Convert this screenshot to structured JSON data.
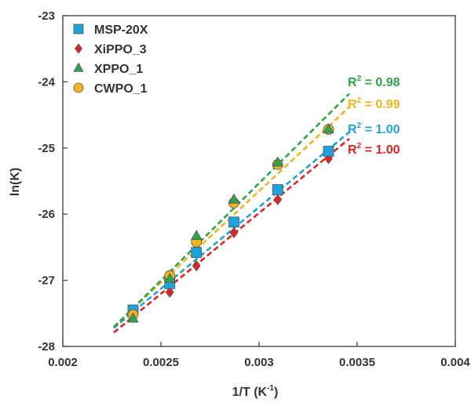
{
  "chart_data": {
    "type": "scatter",
    "xlabel": "1/T (K",
    "xlabel_sup": "-1",
    "xlabel_close": ")",
    "ylabel": "ln(K)",
    "xlim": [
      0.002,
      0.004
    ],
    "ylim": [
      -28,
      -23
    ],
    "x_ticks": [
      0.002,
      0.0025,
      0.003,
      0.0035,
      0.004
    ],
    "x_tick_labels": [
      "0.002",
      "0.0025",
      "0.003",
      "0.0035",
      "0.004"
    ],
    "y_ticks": [
      -28,
      -27,
      -26,
      -25,
      -24,
      -23
    ],
    "y_tick_labels": [
      "-28",
      "-27",
      "-26",
      "-25",
      "-24",
      "-23"
    ],
    "grid": false,
    "legend_position": "top-left",
    "series": [
      {
        "name": "MSP-20X",
        "marker": "square",
        "color": "#1ca3dc",
        "x": [
          0.002358,
          0.002545,
          0.002681,
          0.002872,
          0.003095,
          0.003354
        ],
        "y": [
          -27.45,
          -27.05,
          -26.58,
          -26.12,
          -25.63,
          -25.05
        ],
        "fit": {
          "x": [
            0.00226,
            0.00346
          ],
          "y": [
            -27.72,
            -24.76
          ]
        },
        "r2_prefix": "R",
        "r2_sup": "2",
        "r2_value": " = 1.00"
      },
      {
        "name": "XiPPO_3",
        "marker": "diamond",
        "color": "#e32322",
        "x": [
          0.002358,
          0.002545,
          0.002681,
          0.002872,
          0.003095,
          0.003354
        ],
        "y": [
          -27.55,
          -27.18,
          -26.78,
          -26.28,
          -25.78,
          -25.16
        ],
        "fit": {
          "x": [
            0.00226,
            0.00346
          ],
          "y": [
            -27.79,
            -24.86
          ]
        },
        "r2_prefix": "R",
        "r2_sup": "2",
        "r2_value": " = 1.00"
      },
      {
        "name": "XPPO_1",
        "marker": "triangle",
        "color": "#2da54a",
        "x": [
          0.002358,
          0.002545,
          0.002681,
          0.002872,
          0.003095,
          0.003354
        ],
        "y": [
          -27.58,
          -26.98,
          -26.33,
          -25.78,
          -25.22,
          -24.72
        ],
        "fit": {
          "x": [
            0.00226,
            0.00346
          ],
          "y": [
            -27.71,
            -24.18
          ]
        },
        "r2_prefix": "R",
        "r2_sup": "2",
        "r2_value": " = 0.98"
      },
      {
        "name": "CWPO_1",
        "marker": "circle",
        "color": "#f4b41a",
        "x": [
          0.002358,
          0.002545,
          0.002681,
          0.002872,
          0.003095,
          0.003354
        ],
        "y": [
          -27.52,
          -26.93,
          -26.42,
          -25.83,
          -25.25,
          -24.72
        ],
        "fit": {
          "x": [
            0.00226,
            0.00346
          ],
          "y": [
            -27.7,
            -24.38
          ]
        },
        "r2_prefix": "R",
        "r2_sup": "2",
        "r2_value": " = 0.99"
      }
    ]
  }
}
